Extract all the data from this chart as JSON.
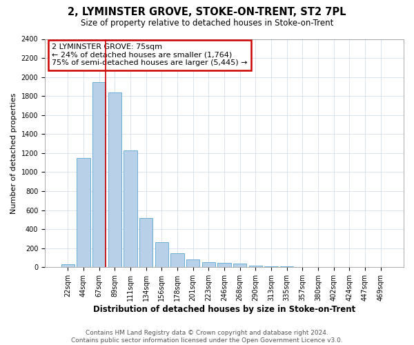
{
  "title": "2, LYMINSTER GROVE, STOKE-ON-TRENT, ST2 7PL",
  "subtitle": "Size of property relative to detached houses in Stoke-on-Trent",
  "xlabel": "Distribution of detached houses by size in Stoke-on-Trent",
  "ylabel": "Number of detached properties",
  "categories": [
    "22sqm",
    "44sqm",
    "67sqm",
    "89sqm",
    "111sqm",
    "134sqm",
    "156sqm",
    "178sqm",
    "201sqm",
    "223sqm",
    "246sqm",
    "268sqm",
    "290sqm",
    "313sqm",
    "335sqm",
    "357sqm",
    "380sqm",
    "402sqm",
    "424sqm",
    "447sqm",
    "469sqm"
  ],
  "values": [
    30,
    1150,
    1950,
    1840,
    1225,
    520,
    265,
    150,
    80,
    55,
    45,
    40,
    15,
    10,
    8,
    5,
    5,
    5,
    5,
    5,
    5
  ],
  "bar_color": "#b8d0e8",
  "bar_edge_color": "#6baed6",
  "red_line_index": 2,
  "annotation_line1": "2 LYMINSTER GROVE: 75sqm",
  "annotation_line2": "← 24% of detached houses are smaller (1,764)",
  "annotation_line3": "75% of semi-detached houses are larger (5,445) →",
  "annotation_box_color": "#ffffff",
  "annotation_box_edge": "#cc0000",
  "footer1": "Contains HM Land Registry data © Crown copyright and database right 2024.",
  "footer2": "Contains public sector information licensed under the Open Government Licence v3.0.",
  "ylim": [
    0,
    2400
  ],
  "yticks": [
    0,
    200,
    400,
    600,
    800,
    1000,
    1200,
    1400,
    1600,
    1800,
    2000,
    2200,
    2400
  ],
  "grid_color": "#ccd8ea",
  "title_fontsize": 10.5,
  "subtitle_fontsize": 8.5,
  "xlabel_fontsize": 8.5,
  "ylabel_fontsize": 8,
  "tick_fontsize": 7,
  "footer_fontsize": 6.5,
  "annot_fontsize": 8
}
